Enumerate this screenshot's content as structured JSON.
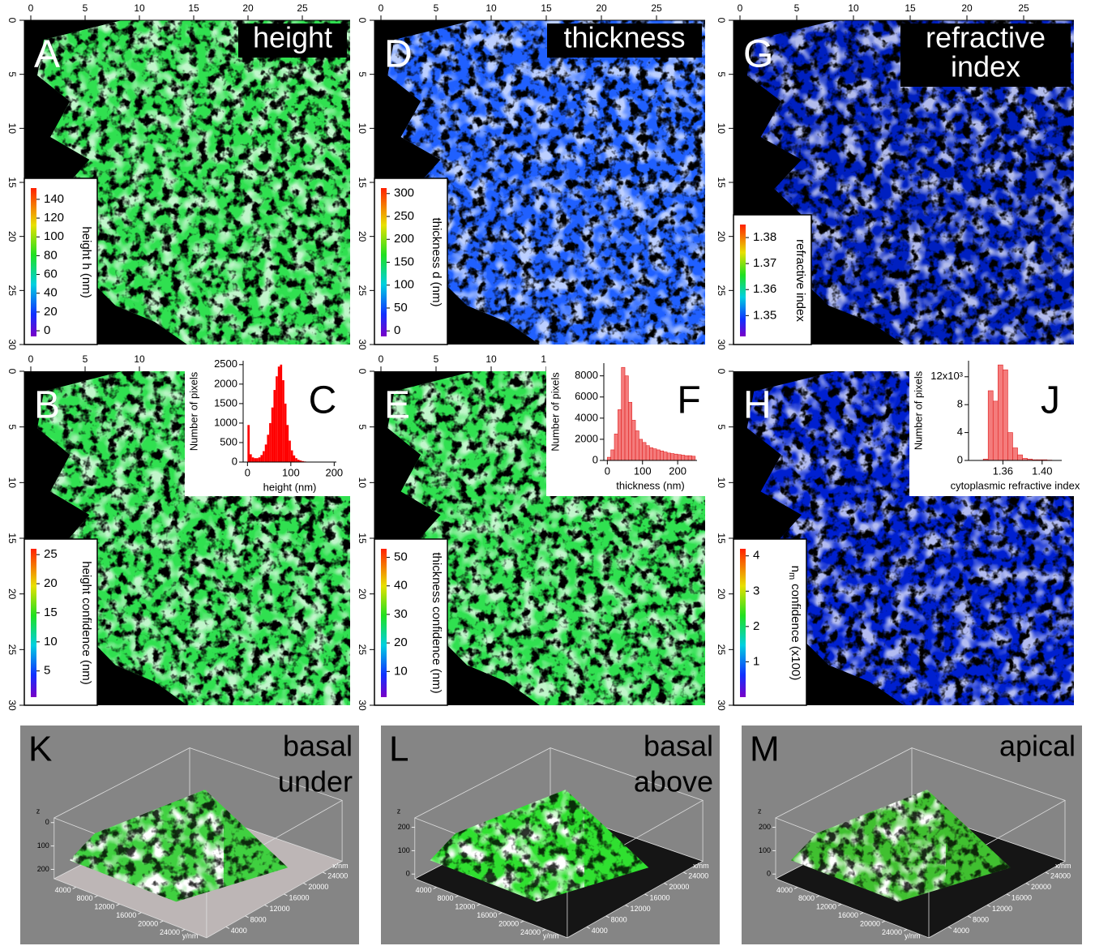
{
  "figure": {
    "panels": [
      {
        "letter": "A",
        "label": [
          "height"
        ],
        "colorbar": {
          "title": "height h (nm)",
          "range": [
            -6,
            152
          ],
          "ticks": [
            0,
            20,
            40,
            60,
            80,
            100,
            120,
            140
          ]
        }
      },
      {
        "letter": "D",
        "label": [
          "thickness"
        ],
        "colorbar": {
          "title": "thickness d (nm)",
          "range": [
            -12,
            312
          ],
          "ticks": [
            0,
            50,
            100,
            150,
            200,
            250,
            300
          ]
        }
      },
      {
        "letter": "G",
        "label": [
          "refractive",
          "index"
        ],
        "colorbar": {
          "title": "refractive index",
          "range": [
            1.342,
            1.385
          ],
          "ticks": [
            1.35,
            1.36,
            1.37,
            1.38
          ]
        }
      },
      {
        "letter": "B",
        "colorbar": {
          "title": "height confidence (nm)",
          "range": [
            0.5,
            26
          ],
          "ticks": [
            5,
            10,
            15,
            20,
            25
          ]
        }
      },
      {
        "letter": "E",
        "colorbar": {
          "title": "thickness confidence (nm)",
          "range": [
            1,
            53
          ],
          "ticks": [
            10,
            20,
            30,
            40,
            50
          ]
        }
      },
      {
        "letter": "H",
        "colorbar": {
          "title_parts": [
            "n",
            "m",
            "confidence (x100)"
          ],
          "range": [
            0,
            4.2
          ],
          "ticks": [
            1,
            2,
            3,
            4
          ]
        }
      }
    ],
    "image_axes": {
      "lim": [
        0,
        30
      ],
      "xticks": [
        0,
        5,
        10,
        15,
        20,
        25
      ],
      "yticks": [
        0,
        5,
        10,
        15,
        20,
        25,
        30
      ]
    },
    "views3d": [
      {
        "letter": "K",
        "label": [
          "basal",
          "under"
        ],
        "x_label": "x/nm",
        "y_label": "y/nm",
        "z_label": "z",
        "xylim": [
          0,
          28000
        ],
        "xticks": [
          4000,
          8000,
          12000,
          16000,
          20000,
          24000
        ],
        "yticks": [
          4000,
          8000,
          12000,
          16000,
          20000,
          24000
        ],
        "zlim": [
          240,
          -20
        ],
        "zticks": [
          0,
          100,
          200
        ]
      },
      {
        "letter": "L",
        "label": [
          "basal",
          "above"
        ],
        "x_label": "x/nm",
        "y_label": "y/nm",
        "z_label": "z",
        "xylim": [
          0,
          28000
        ],
        "xticks": [
          4000,
          8000,
          12000,
          16000,
          20000,
          24000
        ],
        "yticks": [
          4000,
          8000,
          12000,
          16000,
          20000,
          24000
        ],
        "zlim": [
          -20,
          240
        ],
        "zticks": [
          0,
          100,
          200
        ]
      },
      {
        "letter": "M",
        "label": [
          "apical"
        ],
        "x_label": "x/nm",
        "y_label": "y/nm",
        "z_label": "z",
        "xylim": [
          0,
          28000
        ],
        "xticks": [
          4000,
          8000,
          12000,
          16000,
          20000,
          24000
        ],
        "yticks": [
          4000,
          8000,
          12000,
          16000,
          20000,
          24000
        ],
        "zlim": [
          -20,
          240
        ],
        "zticks": [
          0,
          100,
          200
        ]
      }
    ]
  },
  "chart_data": [
    {
      "type": "histogram",
      "letter": "C",
      "xlabel": "height (nm)",
      "ylabel": "Number of pixels",
      "color": "#ff0000",
      "bins": [
        0,
        5,
        10,
        15,
        20,
        25,
        30,
        35,
        40,
        45,
        50,
        55,
        60,
        65,
        70,
        75,
        80,
        85,
        90,
        95,
        100,
        105,
        110,
        115,
        120,
        125,
        130,
        135,
        140,
        145,
        150,
        155,
        160,
        165,
        170,
        175,
        180,
        185,
        190,
        195,
        200
      ],
      "values": [
        950,
        200,
        120,
        100,
        100,
        120,
        180,
        280,
        450,
        700,
        1000,
        1400,
        1850,
        2200,
        2450,
        2500,
        2100,
        1500,
        950,
        550,
        300,
        170,
        100,
        60,
        40,
        25,
        15,
        10,
        6,
        4,
        3,
        2,
        1,
        1,
        0,
        0,
        0,
        0,
        0,
        0
      ],
      "xlim": [
        -10,
        205
      ],
      "ylim": [
        0,
        2600
      ],
      "xticks": [
        0,
        100,
        200
      ],
      "yticks": [
        0,
        500,
        1000,
        1500,
        2000,
        2500
      ]
    },
    {
      "type": "histogram",
      "letter": "F",
      "xlabel": "thickness (nm)",
      "ylabel": "Number of pixels",
      "color": "#f47c7c",
      "bins": [
        0,
        10,
        20,
        30,
        40,
        50,
        60,
        70,
        80,
        90,
        100,
        110,
        120,
        130,
        140,
        150,
        160,
        170,
        180,
        190,
        200,
        210,
        220,
        230,
        240,
        250
      ],
      "values": [
        300,
        1000,
        2500,
        4800,
        8800,
        8000,
        5500,
        3800,
        2800,
        2000,
        1700,
        1400,
        1200,
        1100,
        1000,
        900,
        800,
        700,
        650,
        600,
        550,
        500,
        450,
        450,
        400
      ],
      "xlim": [
        -10,
        255
      ],
      "ylim": [
        0,
        9200
      ],
      "xticks": [
        0,
        100,
        200
      ],
      "yticks": [
        0,
        2000,
        4000,
        6000,
        8000
      ]
    },
    {
      "type": "histogram",
      "letter": "J",
      "xlabel": "cytoplasmic refractive index",
      "ylabel": "Number of pixels",
      "color": "#f47c7c",
      "bins": [
        1.34,
        1.345,
        1.35,
        1.355,
        1.36,
        1.365,
        1.37,
        1.375,
        1.38,
        1.385,
        1.39,
        1.395,
        1.4,
        1.405,
        1.41
      ],
      "values": [
        0.2,
        10,
        8.5,
        13.7,
        13,
        4,
        1.8,
        0.8,
        0.3,
        0.2,
        0.1,
        0.1,
        0.1,
        0.05
      ],
      "xlim": [
        1.325,
        1.42
      ],
      "ylim": [
        0,
        14.3
      ],
      "xticks": [
        1.36,
        {
          "value": 1.4,
          "label": "1.40"
        }
      ],
      "yticks": [
        0,
        4,
        8,
        {
          "value": 12,
          "label": "12x10³"
        }
      ]
    }
  ]
}
